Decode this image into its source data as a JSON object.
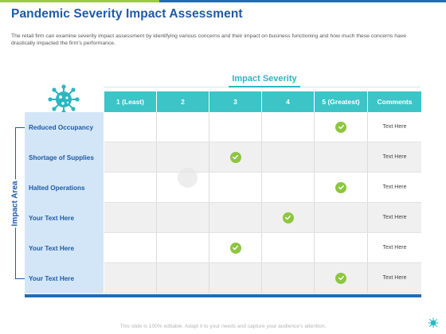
{
  "title": "Pandemic Severity Impact Assessment",
  "description": "The retail firm can examine severity impact assessment by identifying various concerns and their impact on business functioning and how much these concerns have drastically impacted the firm’s performance.",
  "severity_label": "Impact Severity",
  "impact_area_label": "Impact Area",
  "columns": [
    "1 (Least)",
    "2",
    "3",
    "4",
    "5 (Greatest)",
    "Comments"
  ],
  "rows": [
    {
      "label": "Reduced Occupancy",
      "severity": 5,
      "comment": "Text Here"
    },
    {
      "label": "Shortage of Supplies",
      "severity": 3,
      "comment": "Text Here"
    },
    {
      "label": "Halted Operations",
      "severity": 5,
      "comment": "Text Here"
    },
    {
      "label": "Your Text Here",
      "severity": 4,
      "comment": "Text Here"
    },
    {
      "label": "Your Text Here",
      "severity": 3,
      "comment": "Text Here"
    },
    {
      "label": "Your Text Here",
      "severity": 5,
      "comment": "Text Here"
    }
  ],
  "footer": "This slide is 100% editable. Adapt it to your needs and capture your audience's attention.",
  "colors": {
    "teal": "#3cc4c7",
    "blue": "#1f5aa6",
    "check_green": "#8dc63f",
    "row_label_bg": "#d3e6f7"
  }
}
